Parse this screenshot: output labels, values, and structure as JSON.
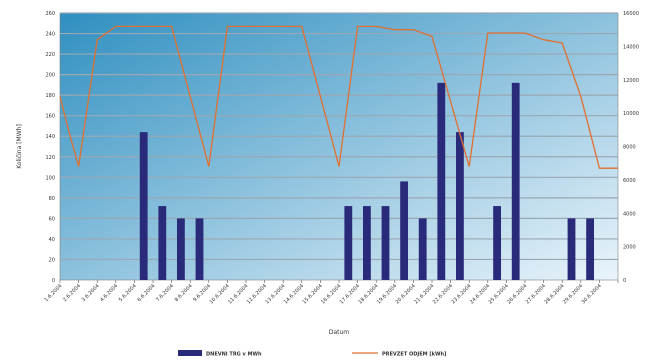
{
  "chart_data": {
    "type": "bar",
    "x_label": "Datum",
    "y_label_left": "Količina [MWh]",
    "y_label_right": "",
    "y_left_lim": [
      0,
      260
    ],
    "y_left_ticks": [
      0,
      20,
      40,
      60,
      80,
      100,
      120,
      140,
      160,
      180,
      200,
      220,
      240,
      260
    ],
    "y_right_lim": [
      0,
      16000
    ],
    "y_right_ticks": [
      0,
      2000,
      4000,
      6000,
      8000,
      10000,
      12000,
      14000,
      16000
    ],
    "grid": true,
    "legend_position": "bottom",
    "categories": [
      "1.6.2004",
      "2.6.2004",
      "3.6.2004",
      "4.6.2004",
      "5.6.2004",
      "6.6.2004",
      "7.6.2004",
      "8.6.2004",
      "9.6.2004",
      "10.6.2004",
      "11.6.2004",
      "12.6.2004",
      "13.6.2004",
      "14.6.2004",
      "15.6.2004",
      "16.6.2004",
      "17.6.2004",
      "18.6.2004",
      "19.6.2004",
      "20.6.2004",
      "21.6.2004",
      "22.6.2004",
      "23.6.2004",
      "24.6.2004",
      "25.6.2004",
      "26.6.2004",
      "27.6.2004",
      "28.6.2004",
      "29.6.2004",
      "30.6.2004"
    ],
    "series": [
      {
        "name": "DNEVNI TRG v MWh",
        "kind": "bar",
        "axis": "left",
        "color": "#2a2a7a",
        "values": [
          0,
          0,
          0,
          0,
          144,
          72,
          60,
          60,
          0,
          0,
          0,
          0,
          0,
          0,
          0,
          72,
          72,
          72,
          96,
          60,
          192,
          144,
          0,
          72,
          192,
          0,
          0,
          60,
          60,
          0
        ]
      },
      {
        "name": "PREVZET ODJEM [kWh]",
        "kind": "line",
        "axis": "right",
        "color": "#e07030",
        "points": [
          [
            0,
            11000
          ],
          [
            0.5,
            8800
          ],
          [
            1,
            6800
          ],
          [
            2,
            14400
          ],
          [
            3,
            15200
          ],
          [
            4,
            15200
          ],
          [
            5,
            15200
          ],
          [
            6,
            15200
          ],
          [
            8,
            6800
          ],
          [
            9,
            15200
          ],
          [
            10,
            15200
          ],
          [
            11,
            15200
          ],
          [
            12,
            15200
          ],
          [
            13,
            15200
          ],
          [
            15,
            6800
          ],
          [
            16,
            15200
          ],
          [
            17,
            15200
          ],
          [
            18,
            15000
          ],
          [
            19,
            15000
          ],
          [
            20,
            14600
          ],
          [
            22,
            6800
          ],
          [
            23,
            14800
          ],
          [
            24,
            14800
          ],
          [
            25,
            14800
          ],
          [
            26,
            14400
          ],
          [
            27,
            14200
          ],
          [
            28,
            11000
          ],
          [
            29,
            6700
          ],
          [
            30,
            6700
          ]
        ]
      }
    ]
  },
  "colors": {
    "plot_bg_top": "#2f8fc0",
    "plot_bg_bottom": "#eaf4fb",
    "grid": "#9aa8b4",
    "bar": "#2a2a7a",
    "line": "#e07030"
  },
  "legend": [
    {
      "label": "DNEVNI TRG v MWh",
      "kind": "bar",
      "color": "#2a2a7a"
    },
    {
      "label": "PREVZET ODJEM [kWh]",
      "kind": "line",
      "color": "#e07030"
    }
  ]
}
